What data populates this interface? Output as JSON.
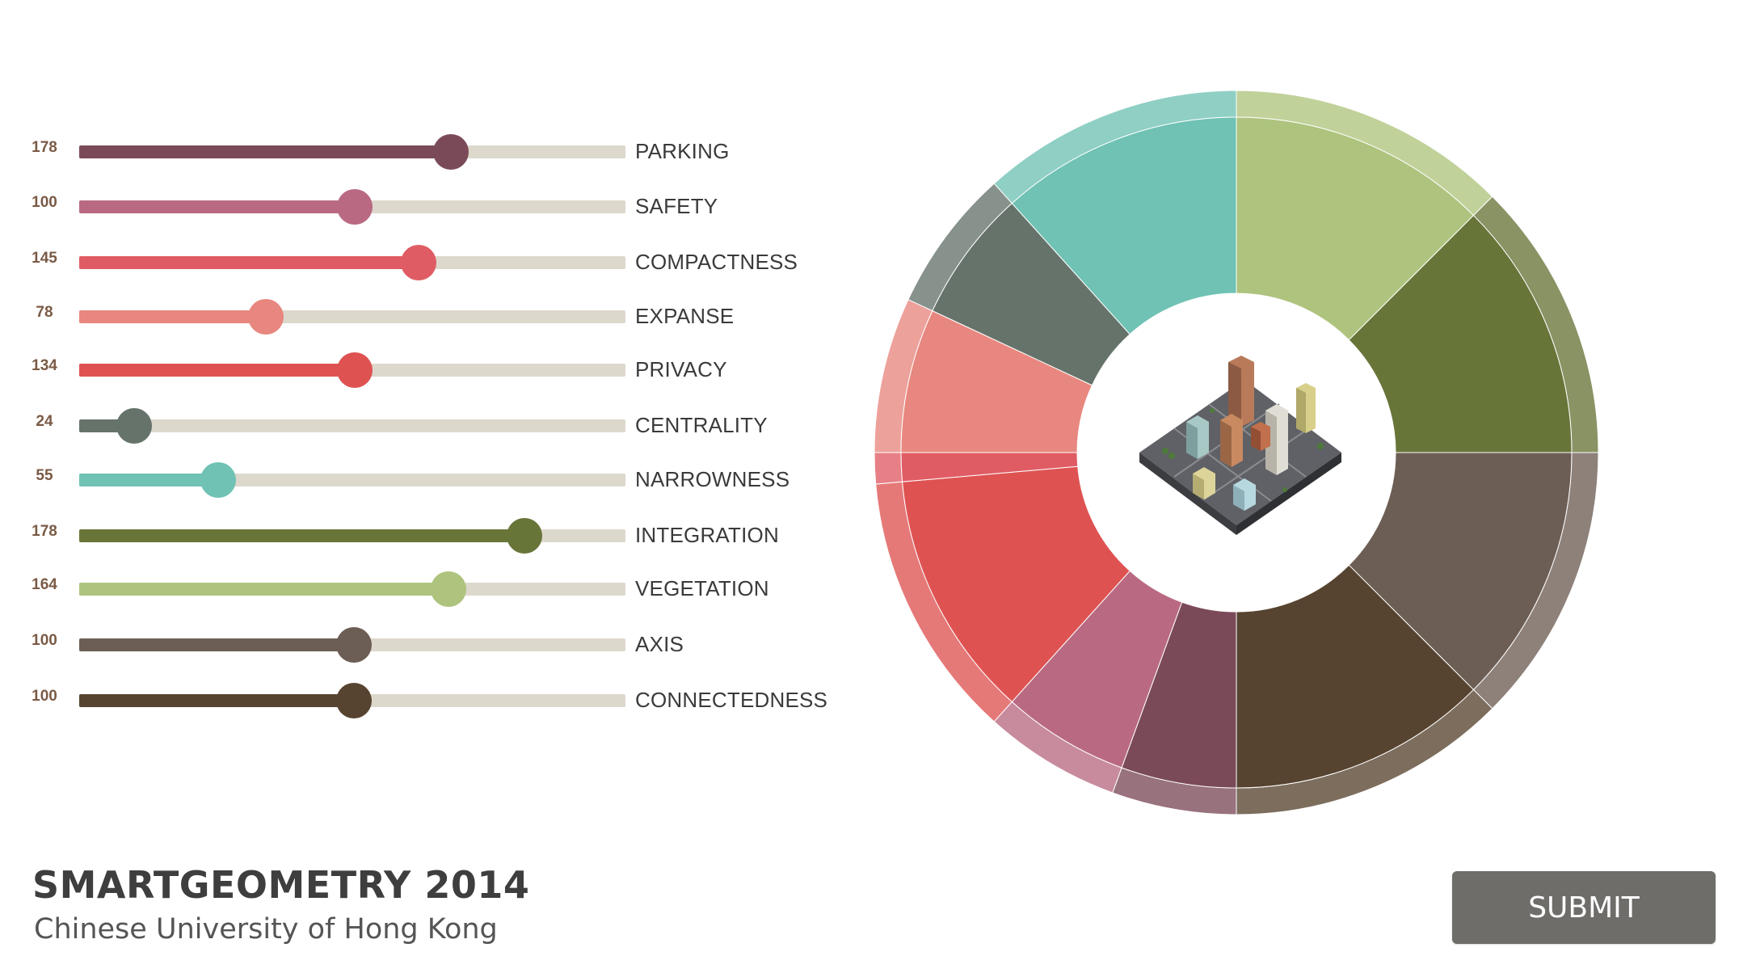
{
  "sliders": [
    {
      "value": "178",
      "label": "PARKING",
      "fraction": 0.68,
      "color": "#7b4a58"
    },
    {
      "value": "100",
      "label": "SAFETY",
      "fraction": 0.504,
      "color": "#b96a82"
    },
    {
      "value": "145",
      "label": "COMPACTNESS",
      "fraction": 0.622,
      "color": "#e05c64"
    },
    {
      "value": "78",
      "label": "EXPANSE",
      "fraction": 0.342,
      "color": "#e8877f"
    },
    {
      "value": "134",
      "label": "PRIVACY",
      "fraction": 0.504,
      "color": "#de5352"
    },
    {
      "value": "24",
      "label": "CENTRALITY",
      "fraction": 0.1,
      "color": "#66736b"
    },
    {
      "value": "55",
      "label": "NARROWNESS",
      "fraction": 0.255,
      "color": "#6fc2b4"
    },
    {
      "value": "178",
      "label": "INTEGRATION",
      "fraction": 0.815,
      "color": "#687539"
    },
    {
      "value": "164",
      "label": "VEGETATION",
      "fraction": 0.676,
      "color": "#aec47e"
    },
    {
      "value": "100",
      "label": "AXIS",
      "fraction": 0.503,
      "color": "#6d5e55"
    },
    {
      "value": "100",
      "label": "CONNECTEDNESS",
      "fraction": 0.503,
      "color": "#574430"
    }
  ],
  "chart_data": {
    "type": "pie",
    "categories": [
      "PARKING",
      "SAFETY",
      "COMPACTNESS",
      "EXPANSE",
      "PRIVACY",
      "CENTRALITY",
      "NARROWNESS",
      "INTEGRATION",
      "VEGETATION",
      "AXIS",
      "CONNECTEDNESS"
    ],
    "segments": [
      {
        "name": "VEGETATION",
        "start_deg": 0,
        "end_deg": 45,
        "color": "#aec47e"
      },
      {
        "name": "INTEGRATION",
        "start_deg": 45,
        "end_deg": 90,
        "color": "#687539"
      },
      {
        "name": "AXIS",
        "start_deg": 90,
        "end_deg": 135,
        "color": "#6d5e55"
      },
      {
        "name": "CONNECTEDNESS",
        "start_deg": 135,
        "end_deg": 180,
        "color": "#574430"
      },
      {
        "name": "PARKING",
        "start_deg": 180,
        "end_deg": 200,
        "color": "#7b4a58"
      },
      {
        "name": "SAFETY",
        "start_deg": 200,
        "end_deg": 222,
        "color": "#b96a82"
      },
      {
        "name": "PRIVACY",
        "start_deg": 222,
        "end_deg": 265,
        "color": "#de5352"
      },
      {
        "name": "COMPACTNESS",
        "start_deg": 265,
        "end_deg": 270,
        "color": "#e05c64"
      },
      {
        "name": "EXPANSE",
        "start_deg": 270,
        "end_deg": 295,
        "color": "#e8877f"
      },
      {
        "name": "CENTRALITY",
        "start_deg": 295,
        "end_deg": 318,
        "color": "#66736b"
      },
      {
        "name": "NARROWNESS",
        "start_deg": 318,
        "end_deg": 360,
        "color": "#6fc2b4"
      }
    ]
  },
  "center_image": {
    "description_icon": "city-block-icon"
  },
  "footer": {
    "title": "SMARTGEOMETRY 2014",
    "subtitle": "Chinese University of Hong Kong"
  },
  "submit": {
    "label": "SUBMIT"
  }
}
